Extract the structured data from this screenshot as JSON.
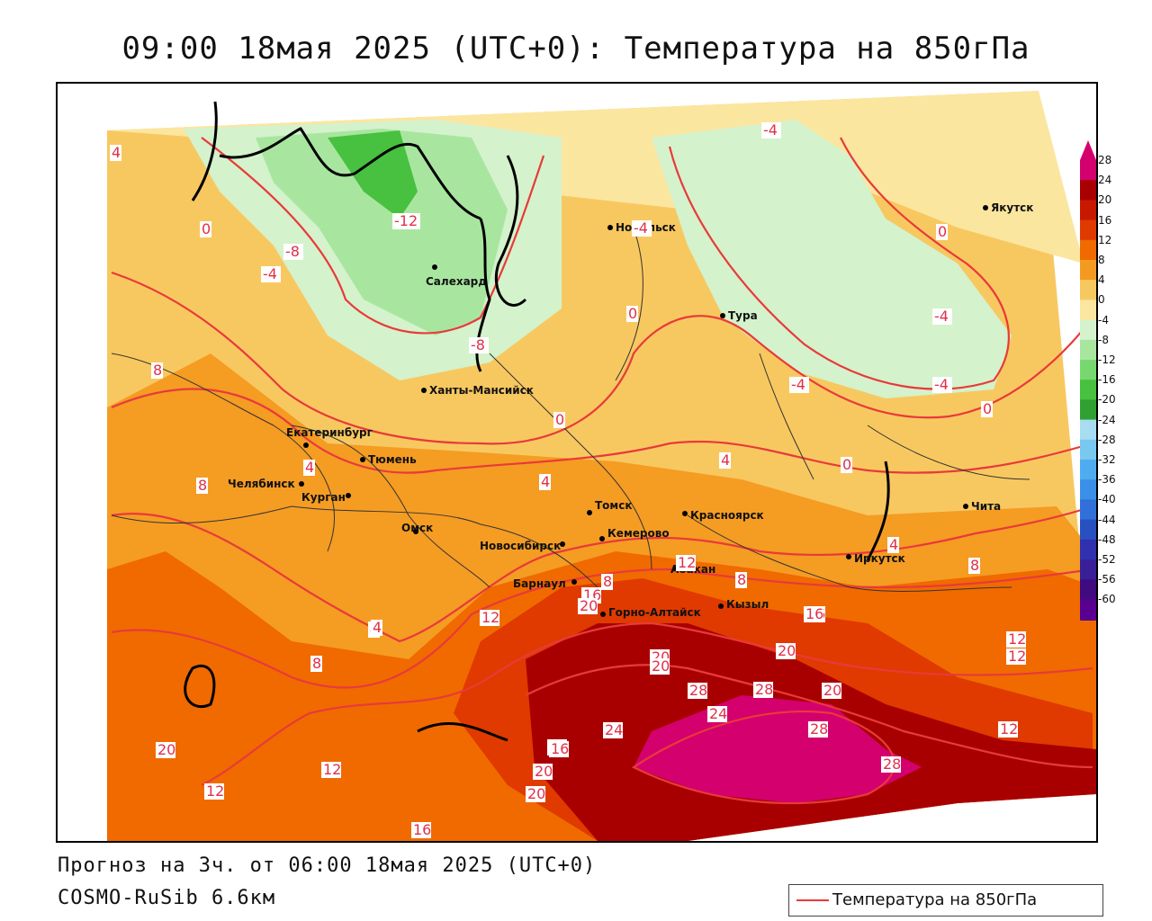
{
  "title": "09:00 18мая 2025 (UTC+0): Температура на 850гПа",
  "footer": {
    "forecast": "Прогноз на 3ч. от 06:00 18мая 2025 (UTC+0)",
    "model": "COSMO-RuSib 6.6км"
  },
  "legend": {
    "label": "Температура на 850гПа",
    "line_color": "#e83a3a"
  },
  "colorbar": {
    "ticks": [
      "28",
      "24",
      "20",
      "16",
      "12",
      "8",
      "4",
      "0",
      "-4",
      "-8",
      "-12",
      "-16",
      "-20",
      "-24",
      "-28",
      "-32",
      "-36",
      "-40",
      "-44",
      "-48",
      "-52",
      "-56",
      "-60"
    ],
    "colors": [
      "#d4006e",
      "#a80000",
      "#c81800",
      "#e03a00",
      "#f06a00",
      "#f49a20",
      "#f8c860",
      "#fbe6a0",
      "#d4f2cc",
      "#a8e6a0",
      "#78d870",
      "#48c040",
      "#30a030",
      "#a8dcf0",
      "#78c8f0",
      "#50acf0",
      "#3a90e8",
      "#3070d8",
      "#2850c0",
      "#3030b0",
      "#3a2098",
      "#400a80",
      "#5a0090"
    ]
  },
  "cities": [
    {
      "name": "Норильск"
    },
    {
      "name": "Якутск"
    },
    {
      "name": "Салехард"
    },
    {
      "name": "Тура"
    },
    {
      "name": "Ханты-Мансийск"
    },
    {
      "name": "Екатеринбург"
    },
    {
      "name": "Тюмень"
    },
    {
      "name": "Челябинск"
    },
    {
      "name": "Курган"
    },
    {
      "name": "Омск"
    },
    {
      "name": "Новосибирск"
    },
    {
      "name": "Томск"
    },
    {
      "name": "Кемерово"
    },
    {
      "name": "Красноярск"
    },
    {
      "name": "Барнаул"
    },
    {
      "name": "Абакан"
    },
    {
      "name": "Горно-Алтайск"
    },
    {
      "name": "Кызыл"
    },
    {
      "name": "Иркутск"
    },
    {
      "name": "Чита"
    }
  ],
  "isotherm_labels": [
    "4",
    "0",
    "-4",
    "-8",
    "-12",
    "-8",
    "-4",
    "0",
    "-4",
    "-4",
    "0",
    "-4",
    "-4",
    "0",
    "0",
    "4",
    "8",
    "4",
    "4",
    "8",
    "4",
    "4",
    "0",
    "8",
    "12",
    "16",
    "20",
    "12",
    "12",
    "16",
    "8",
    "16",
    "20",
    "24",
    "28",
    "28",
    "28",
    "20",
    "24",
    "28",
    "20",
    "12",
    "12",
    "16",
    "20",
    "16",
    "20",
    "20",
    "8",
    "4",
    "8",
    "12",
    "12",
    "16",
    "20"
  ],
  "colors": {
    "isotherm_line": "#e83a3a",
    "coast_line": "#000000",
    "border_line": "#333333"
  }
}
